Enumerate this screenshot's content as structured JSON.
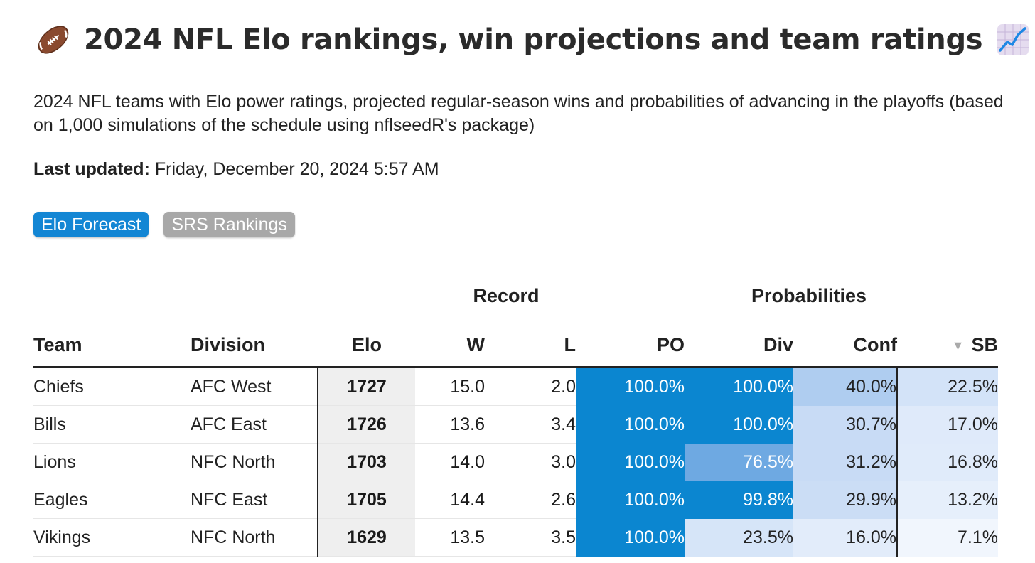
{
  "header": {
    "title": "2024 NFL Elo rankings, win projections and team ratings",
    "subtitle": "2024 NFL teams with Elo power ratings, projected regular-season wins and probabilities of advancing in the playoffs (based on 1,000 simulations of the schedule using nflseedR's package)",
    "updated_label": "Last updated:",
    "updated_value": " Friday, December 20, 2024 5:57 AM",
    "icons": {
      "left": "football-icon",
      "right": "chart-increasing-icon"
    }
  },
  "tabs": [
    {
      "label": "Elo Forecast",
      "active": true
    },
    {
      "label": "SRS Rankings",
      "active": false
    }
  ],
  "table": {
    "group_headers": {
      "record": "Record",
      "probabilities": "Probabilities"
    },
    "columns": {
      "team": "Team",
      "division": "Division",
      "elo": "Elo",
      "w": "W",
      "l": "L",
      "po": "PO",
      "div": "Div",
      "conf": "Conf",
      "sb": "SB"
    },
    "sort_indicator": "▼",
    "rows": [
      {
        "team": "Chiefs",
        "division": "AFC West",
        "elo": "1727",
        "w": "15.0",
        "l": "2.0",
        "po": "100.0%",
        "div": "100.0%",
        "conf": "40.0%",
        "sb": "22.5%",
        "po_color": "#0b86d0",
        "div_color": "#0b86d0",
        "conf_color": "#afcdf0",
        "sb_color": "#d3e3f8"
      },
      {
        "team": "Bills",
        "division": "AFC East",
        "elo": "1726",
        "w": "13.6",
        "l": "3.4",
        "po": "100.0%",
        "div": "100.0%",
        "conf": "30.7%",
        "sb": "17.0%",
        "po_color": "#0b86d0",
        "div_color": "#0b86d0",
        "conf_color": "#c8dbf5",
        "sb_color": "#dfeafa"
      },
      {
        "team": "Lions",
        "division": "NFC North",
        "elo": "1703",
        "w": "14.0",
        "l": "3.0",
        "po": "100.0%",
        "div": "76.5%",
        "conf": "31.2%",
        "sb": "16.8%",
        "po_color": "#0b86d0",
        "div_color": "#6ea9e2",
        "conf_color": "#c8dbf5",
        "sb_color": "#e0ebfa"
      },
      {
        "team": "Eagles",
        "division": "NFC East",
        "elo": "1705",
        "w": "14.4",
        "l": "2.6",
        "po": "100.0%",
        "div": "99.8%",
        "conf": "29.9%",
        "sb": "13.2%",
        "po_color": "#0b86d0",
        "div_color": "#0b86d0",
        "conf_color": "#cbddf5",
        "sb_color": "#e6effb"
      },
      {
        "team": "Vikings",
        "division": "NFC North",
        "elo": "1629",
        "w": "13.5",
        "l": "3.5",
        "po": "100.0%",
        "div": "23.5%",
        "conf": "16.0%",
        "sb": "7.1%",
        "po_color": "#0b86d0",
        "div_color": "#d6e5f8",
        "conf_color": "#e2ecfa",
        "sb_color": "#f1f6fd"
      }
    ]
  }
}
